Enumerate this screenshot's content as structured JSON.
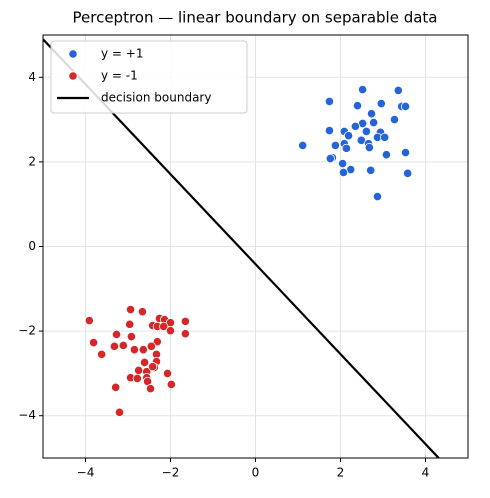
{
  "chart_data": {
    "type": "scatter",
    "title": "Perceptron — linear boundary on separable data",
    "xlim": [
      -5,
      5
    ],
    "ylim": [
      -5,
      5
    ],
    "xticks": [
      {
        "value": -4,
        "label": "−4"
      },
      {
        "value": -2,
        "label": "−2"
      },
      0,
      2,
      4
    ],
    "yticks": [
      {
        "value": -4,
        "label": "−4"
      },
      {
        "value": -2,
        "label": "−2"
      },
      0,
      2,
      4
    ],
    "grid": true,
    "legend": "upper left",
    "series": [
      {
        "name": "y = +1",
        "color": "#2563d9",
        "style": "points",
        "x": [
          2.52,
          3.36,
          1.74,
          2.4,
          2.96,
          3.44,
          3.53,
          2.73,
          3.27,
          2.52,
          2.78,
          2.35,
          1.74,
          2.09,
          2.19,
          2.61,
          2.94,
          2.87,
          3.04,
          2.49,
          1.11,
          1.88,
          2.09,
          2.14,
          2.66,
          2.68,
          3.53,
          3.08,
          1.81,
          1.76,
          2.05,
          2.24,
          2.07,
          2.71,
          3.58,
          2.87
        ],
        "values": [
          3.71,
          3.69,
          3.43,
          3.33,
          3.38,
          3.31,
          3.31,
          3.14,
          3.0,
          2.91,
          2.93,
          2.84,
          2.74,
          2.72,
          2.62,
          2.72,
          2.7,
          2.58,
          2.58,
          2.51,
          2.39,
          2.39,
          2.43,
          2.32,
          2.43,
          2.34,
          2.22,
          2.17,
          2.1,
          2.08,
          1.96,
          1.82,
          1.75,
          1.8,
          1.73,
          1.18
        ]
      },
      {
        "name": "y = -1",
        "color": "#d62728",
        "style": "points",
        "x": [
          -2.94,
          -2.66,
          -3.91,
          -2.26,
          -2.14,
          -2.0,
          -1.65,
          -2.42,
          -2.31,
          -2.16,
          -1.65,
          -2.0,
          -2.96,
          -3.27,
          -3.81,
          -2.92,
          -3.32,
          -3.11,
          -2.31,
          -2.45,
          -3.62,
          -2.85,
          -2.64,
          -2.33,
          -2.61,
          -2.33,
          -2.75,
          -2.07,
          -2.56,
          -2.38,
          -2.42,
          -2.94,
          -2.56,
          -2.78,
          -1.98,
          -2.54,
          -3.29,
          -2.47,
          -3.2
        ],
        "values": [
          -1.49,
          -1.54,
          -1.75,
          -1.7,
          -1.73,
          -1.8,
          -1.77,
          -1.87,
          -1.89,
          -1.89,
          -2.06,
          -1.99,
          -1.84,
          -2.08,
          -2.27,
          -2.13,
          -2.36,
          -2.34,
          -2.25,
          -2.36,
          -2.55,
          -2.44,
          -2.44,
          -2.55,
          -2.74,
          -2.72,
          -2.93,
          -3.0,
          -2.96,
          -2.86,
          -2.84,
          -3.1,
          -3.1,
          -3.12,
          -3.26,
          -3.19,
          -3.33,
          -3.36,
          -3.92
        ]
      },
      {
        "name": "decision boundary",
        "color": "#000000",
        "style": "line",
        "x": [
          -5,
          4.31
        ],
        "values": [
          4.9,
          -5
        ]
      }
    ]
  }
}
